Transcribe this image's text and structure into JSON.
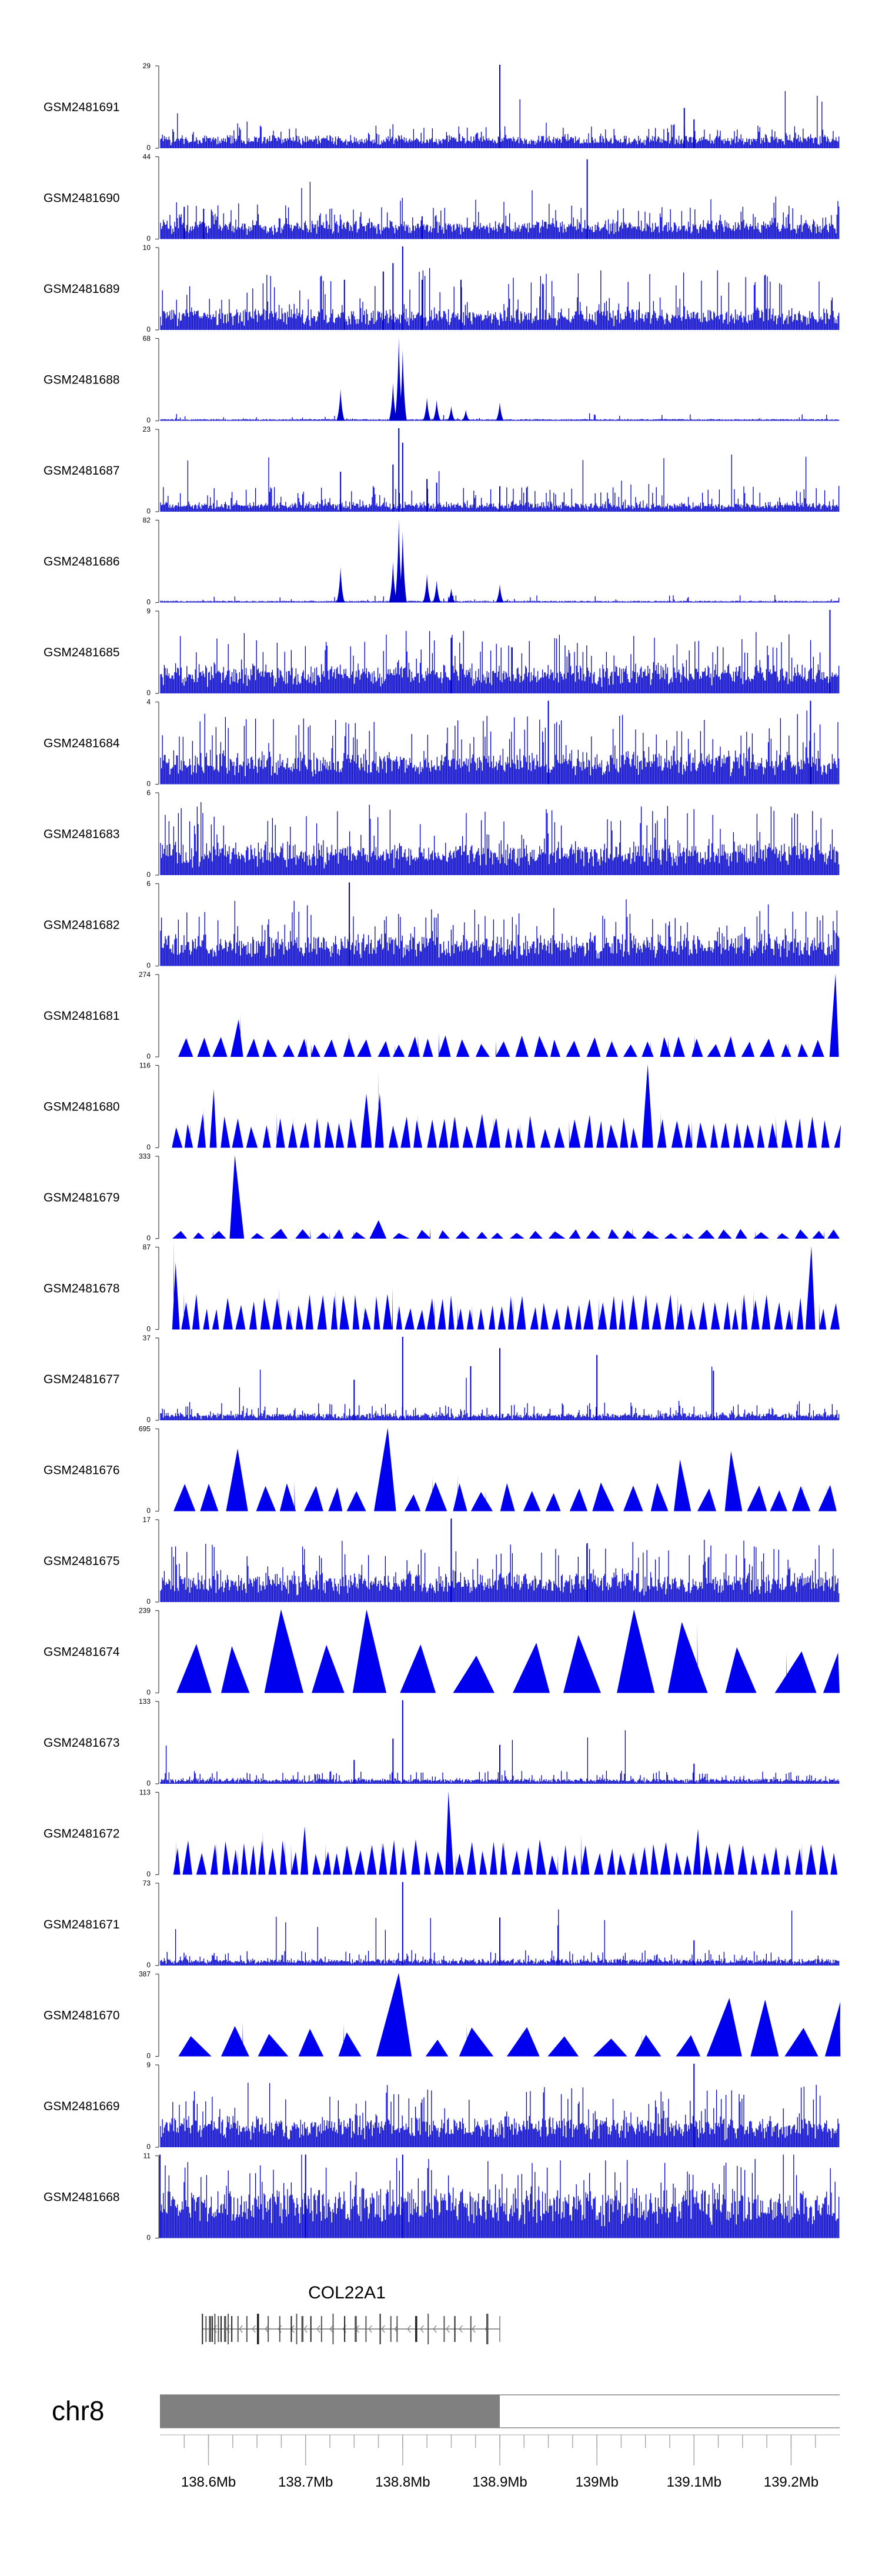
{
  "chart_data": {
    "type": "genome-browser-tracks",
    "chromosome": "chr8",
    "region_mb": [
      138.55,
      139.25
    ],
    "gene": {
      "name": "COL22A1",
      "start_mb": 138.575,
      "end_mb": 138.9,
      "strand": "-",
      "exon_positions_mb": [
        138.578,
        138.582,
        138.586,
        138.589,
        138.592,
        138.596,
        138.599,
        138.603,
        138.607,
        138.611,
        138.618,
        138.628,
        138.64,
        138.652,
        138.665,
        138.678,
        138.684,
        138.69,
        138.7,
        138.712,
        138.725,
        138.738,
        138.75,
        138.762,
        138.778,
        138.79,
        138.797,
        138.818,
        138.832,
        138.85,
        138.862,
        138.88,
        138.898
      ]
    },
    "ideogram_highlight_mb": [
      138.55,
      138.9
    ],
    "axis_ticks_mb": [
      138.6,
      138.7,
      138.8,
      138.9,
      139.0,
      139.1,
      139.2
    ],
    "axis_tick_labels": [
      "138.6Mb",
      "138.7Mb",
      "138.8Mb",
      "138.9Mb",
      "139Mb",
      "139.1Mb",
      "139.2Mb"
    ],
    "tracks": [
      {
        "name": "GSM2481691",
        "ymax": 29,
        "ymin": 0,
        "style": "dense",
        "base": 0.08,
        "noise": 0.12,
        "spikes": [
          [
            138.9,
            29
          ],
          [
            139.09,
            14
          ],
          [
            139.1,
            10
          ]
        ]
      },
      {
        "name": "GSM2481690",
        "ymax": 44,
        "ymin": 0,
        "style": "dense",
        "base": 0.12,
        "noise": 0.18,
        "spikes": [
          [
            138.575,
            17
          ],
          [
            138.595,
            16
          ],
          [
            138.99,
            42
          ],
          [
            138.82,
            12
          ]
        ]
      },
      {
        "name": "GSM2481689",
        "ymax": 10,
        "ymin": 0,
        "style": "dense",
        "base": 0.1,
        "noise": 0.35,
        "spikes": [
          [
            138.78,
            7
          ],
          [
            138.79,
            8
          ],
          [
            138.8,
            10
          ],
          [
            138.82,
            6
          ],
          [
            138.86,
            6
          ],
          [
            138.74,
            6
          ]
        ]
      },
      {
        "name": "GSM2481688",
        "ymax": 68,
        "ymin": 0,
        "style": "peaks",
        "base": 0.01,
        "noise": 0.04,
        "spikes": [
          [
            138.736,
            26
          ],
          [
            138.79,
            31
          ],
          [
            138.796,
            68
          ],
          [
            138.8,
            58
          ],
          [
            138.825,
            19
          ],
          [
            138.835,
            17
          ],
          [
            138.85,
            12
          ],
          [
            138.865,
            9
          ],
          [
            138.9,
            15
          ]
        ]
      },
      {
        "name": "GSM2481687",
        "ymax": 23,
        "ymin": 0,
        "style": "dense",
        "base": 0.05,
        "noise": 0.15,
        "spikes": [
          [
            138.736,
            11
          ],
          [
            138.79,
            13
          ],
          [
            138.796,
            23
          ],
          [
            138.8,
            19
          ],
          [
            138.825,
            9
          ],
          [
            138.835,
            8
          ],
          [
            138.9,
            7
          ]
        ]
      },
      {
        "name": "GSM2481686",
        "ymax": 82,
        "ymin": 0,
        "style": "peaks",
        "base": 0.01,
        "noise": 0.04,
        "spikes": [
          [
            138.736,
            35
          ],
          [
            138.79,
            40
          ],
          [
            138.796,
            82
          ],
          [
            138.8,
            70
          ],
          [
            138.825,
            28
          ],
          [
            138.835,
            22
          ],
          [
            138.85,
            14
          ],
          [
            138.9,
            18
          ]
        ]
      },
      {
        "name": "GSM2481685",
        "ymax": 9,
        "ymin": 0,
        "style": "dense",
        "base": 0.18,
        "noise": 0.3,
        "spikes": [
          [
            138.85,
            6
          ],
          [
            139.24,
            9
          ]
        ]
      },
      {
        "name": "GSM2481684",
        "ymax": 4,
        "ymin": 0,
        "style": "dense",
        "base": 0.2,
        "noise": 0.35,
        "spikes": [
          [
            138.95,
            4
          ],
          [
            139.22,
            4
          ]
        ]
      },
      {
        "name": "GSM2481683",
        "ymax": 6,
        "ymin": 0,
        "style": "dense",
        "base": 0.2,
        "noise": 0.35,
        "spikes": []
      },
      {
        "name": "GSM2481682",
        "ymax": 6,
        "ymin": 0,
        "style": "dense",
        "base": 0.2,
        "noise": 0.3,
        "spikes": [
          [
            138.745,
            6
          ]
        ]
      },
      {
        "name": "GSM2481681",
        "ymax": 274,
        "ymin": 0,
        "style": "triangles",
        "spacing": 0.0135,
        "h": 0.2,
        "spikes": [
          [
            138.635,
            0.45
          ],
          [
            139.25,
            1.0
          ]
        ]
      },
      {
        "name": "GSM2481680",
        "ymax": 116,
        "ymin": 0,
        "style": "triangles",
        "spacing": 0.0105,
        "h": 0.32,
        "spikes": [
          [
            138.6,
            0.7
          ],
          [
            138.77,
            0.65
          ],
          [
            139.05,
            1.0
          ]
        ]
      },
      {
        "name": "GSM2481679",
        "ymax": 333,
        "ymin": 0,
        "style": "triangles",
        "spacing": 0.016,
        "h": 0.09,
        "spikes": [
          [
            138.635,
            1.0
          ],
          [
            138.77,
            0.22
          ]
        ]
      },
      {
        "name": "GSM2481678",
        "ymax": 87,
        "ymin": 0,
        "style": "triangles",
        "spacing": 0.009,
        "h": 0.33,
        "spikes": [
          [
            138.57,
            0.8
          ],
          [
            139.22,
            1.0
          ]
        ]
      },
      {
        "name": "GSM2481677",
        "ymax": 37,
        "ymin": 0,
        "style": "dense",
        "base": 0.04,
        "noise": 0.1,
        "spikes": [
          [
            138.8,
            37
          ],
          [
            138.87,
            24
          ],
          [
            138.9,
            32
          ],
          [
            139.0,
            29
          ],
          [
            139.12,
            22
          ],
          [
            138.75,
            18
          ]
        ]
      },
      {
        "name": "GSM2481676",
        "ymax": 695,
        "ymin": 0,
        "style": "triangles",
        "spacing": 0.02,
        "h": 0.28,
        "spikes": [
          [
            138.645,
            0.75
          ],
          [
            138.78,
            1.0
          ],
          [
            139.08,
            0.62
          ],
          [
            139.15,
            0.72
          ]
        ]
      },
      {
        "name": "GSM2481675",
        "ymax": 17,
        "ymin": 0,
        "style": "dense",
        "base": 0.18,
        "noise": 0.3,
        "spikes": [
          [
            138.85,
            17
          ],
          [
            138.99,
            12
          ]
        ]
      },
      {
        "name": "GSM2481674",
        "ymax": 239,
        "ymin": 0,
        "style": "triangles",
        "spacing": 0.038,
        "h": 0.55,
        "spikes": [
          [
            138.69,
            1.0
          ],
          [
            138.77,
            1.0
          ],
          [
            139.05,
            1.0
          ],
          [
            139.09,
            0.85
          ]
        ]
      },
      {
        "name": "GSM2481673",
        "ymax": 133,
        "ymin": 0,
        "style": "dense",
        "base": 0.03,
        "noise": 0.07,
        "spikes": [
          [
            138.8,
            133
          ],
          [
            138.79,
            72
          ],
          [
            138.9,
            62
          ],
          [
            139.1,
            32
          ],
          [
            138.75,
            38
          ]
        ]
      },
      {
        "name": "GSM2481672",
        "ymax": 113,
        "ymin": 0,
        "style": "triangles",
        "spacing": 0.0095,
        "h": 0.33,
        "spikes": [
          [
            138.845,
            1.0
          ],
          [
            138.7,
            0.58
          ],
          [
            139.1,
            0.55
          ]
        ]
      },
      {
        "name": "GSM2481671",
        "ymax": 73,
        "ymin": 0,
        "style": "dense",
        "base": 0.04,
        "noise": 0.08,
        "spikes": [
          [
            138.8,
            73
          ],
          [
            138.9,
            42
          ],
          [
            138.96,
            35
          ],
          [
            139.1,
            22
          ]
        ]
      },
      {
        "name": "GSM2481670",
        "ymax": 387,
        "ymin": 0,
        "style": "triangles",
        "spacing": 0.033,
        "h": 0.28,
        "spikes": [
          [
            138.775,
            1.0
          ],
          [
            139.15,
            0.7
          ],
          [
            139.18,
            0.68
          ],
          [
            139.24,
            0.65
          ]
        ]
      },
      {
        "name": "GSM2481669",
        "ymax": 9,
        "ymin": 0,
        "style": "dense",
        "base": 0.2,
        "noise": 0.3,
        "spikes": [
          [
            139.1,
            9
          ]
        ]
      },
      {
        "name": "GSM2481668",
        "ymax": 11,
        "ymin": 0,
        "style": "dense",
        "base": 0.35,
        "noise": 0.35,
        "spikes": [
          [
            138.55,
            11
          ],
          [
            138.7,
            11
          ],
          [
            138.8,
            11
          ]
        ]
      }
    ]
  }
}
